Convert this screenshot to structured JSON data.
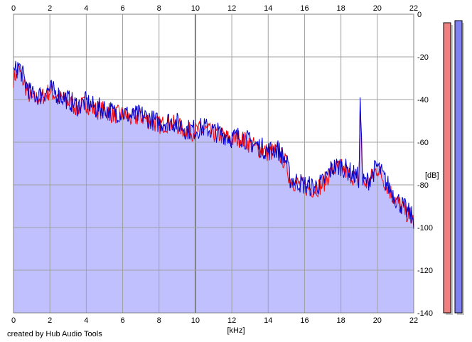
{
  "credit": "created by Hub Audio Tools",
  "colors": {
    "background": "#ffffff",
    "plot_fill": "#c0c0ff",
    "grid": "#a0a0a0",
    "grid_major": "#808080",
    "channel_left": "#ff0000",
    "channel_right": "#0000cc",
    "meter_left_fill": "#f08080",
    "meter_right_fill": "#8080f0",
    "meter_shadow": "#c8c8c8"
  },
  "chart_data": {
    "type": "line",
    "title": "",
    "xlabel": "[kHz]",
    "ylabel": "[dB]",
    "xlim": [
      0,
      22
    ],
    "ylim": [
      -140,
      0
    ],
    "x_ticks": [
      "0",
      "2",
      "4",
      "6",
      "8",
      "10",
      "12",
      "14",
      "16",
      "18",
      "20",
      "22"
    ],
    "y_ticks": [
      "0",
      "-20",
      "-40",
      "-60",
      "-80",
      "-100",
      "-120",
      "-140"
    ],
    "grid": true,
    "legend": "none",
    "series": [
      {
        "color": "#ff0000",
        "x": [
          0,
          0.3,
          0.6,
          1,
          1.5,
          2,
          2.5,
          3,
          3.5,
          4,
          4.5,
          5,
          5.5,
          6,
          6.5,
          7,
          7.5,
          8,
          8.5,
          9,
          9.5,
          10,
          10.5,
          11,
          11.5,
          12,
          12.5,
          13,
          13.5,
          14,
          14.5,
          15,
          15.2,
          15.5,
          16,
          16.5,
          17,
          17.5,
          18,
          18.5,
          19,
          19.05,
          19.2,
          19.5,
          20,
          20.5,
          21,
          21.5,
          22
        ],
        "values": [
          -30,
          -26,
          -33,
          -40,
          -39,
          -36,
          -39,
          -41,
          -44,
          -42,
          -45,
          -45,
          -47,
          -47,
          -49,
          -48,
          -50,
          -52,
          -51,
          -52,
          -55,
          -55,
          -54,
          -56,
          -57,
          -59,
          -58,
          -61,
          -63,
          -65,
          -64,
          -70,
          -78,
          -79,
          -81,
          -82,
          -80,
          -73,
          -72,
          -75,
          -78,
          -40,
          -80,
          -79,
          -72,
          -80,
          -87,
          -92,
          -97
        ]
      },
      {
        "color": "#0000cc",
        "x": [
          0,
          0.3,
          0.6,
          1,
          1.5,
          2,
          2.5,
          3,
          3.5,
          4,
          4.5,
          5,
          5.5,
          6,
          6.5,
          7,
          7.5,
          8,
          8.5,
          9,
          9.5,
          10,
          10.5,
          11,
          11.5,
          12,
          12.5,
          13,
          13.5,
          14,
          14.5,
          15,
          15.2,
          15.5,
          16,
          16.5,
          17,
          17.5,
          18,
          18.5,
          19,
          19.05,
          19.2,
          19.5,
          20,
          20.5,
          21,
          21.5,
          22
        ],
        "values": [
          -28,
          -24,
          -31,
          -38,
          -38,
          -35,
          -38,
          -40,
          -43,
          -41,
          -44,
          -44,
          -46,
          -46,
          -48,
          -47,
          -49,
          -51,
          -50,
          -51,
          -54,
          -54,
          -53,
          -55,
          -56,
          -58,
          -57,
          -60,
          -62,
          -64,
          -63,
          -69,
          -77,
          -78,
          -80,
          -81,
          -79,
          -72,
          -71,
          -74,
          -77,
          -38,
          -79,
          -78,
          -71,
          -79,
          -86,
          -91,
          -96
        ]
      }
    ],
    "meters": [
      {
        "channel": "left",
        "color": "#f08080",
        "level_db": -4
      },
      {
        "channel": "right",
        "color": "#8080f0",
        "level_db": -3
      }
    ]
  }
}
